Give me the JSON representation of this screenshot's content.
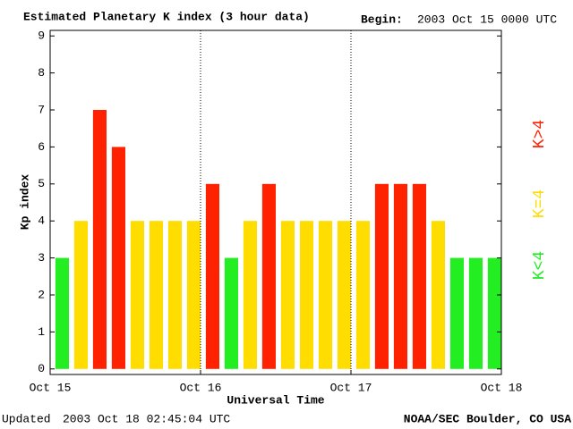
{
  "chart_data": {
    "type": "bar",
    "title": "Estimated Planetary K index (3 hour data)",
    "begin_label": "Begin:",
    "begin": "2003 Oct 15 0000 UTC",
    "y_label": "Kp index",
    "x_label": "Universal Time",
    "updated_label": "Updated",
    "updated": "2003 Oct 18 02:45:04 UTC",
    "source": "NOAA/SEC Boulder, CO USA",
    "x": [
      0,
      3,
      6,
      9,
      12,
      15,
      18,
      21,
      24,
      27,
      30,
      33,
      36,
      39,
      42,
      45,
      48,
      51,
      54,
      57,
      60,
      63,
      66,
      69
    ],
    "bar_width": 3,
    "values": [
      3,
      4,
      7,
      6,
      4,
      4,
      4,
      4,
      5,
      3,
      4,
      5,
      4,
      4,
      4,
      4,
      4,
      5,
      5,
      5,
      4,
      3,
      3,
      3
    ],
    "colors": [
      "#22ee22",
      "#ffdd00",
      "#ff2200",
      "#ff2200",
      "#ffdd00",
      "#ffdd00",
      "#ffdd00",
      "#ffdd00",
      "#ff2200",
      "#22ee22",
      "#ffdd00",
      "#ff2200",
      "#ffdd00",
      "#ffdd00",
      "#ffdd00",
      "#ffdd00",
      "#ffdd00",
      "#ff2200",
      "#ff2200",
      "#ff2200",
      "#ffdd00",
      "#22ee22",
      "#22ee22",
      "#22ee22"
    ],
    "legend": [
      {
        "label": "K<4",
        "color": "#22ee22"
      },
      {
        "label": "K=4",
        "color": "#ffdd00"
      },
      {
        "label": "K>4",
        "color": "#ff2200"
      }
    ],
    "xlim": [
      0,
      72
    ],
    "xticks": [
      {
        "value": 0,
        "label": "Oct 15"
      },
      {
        "value": 24,
        "label": "Oct 16"
      },
      {
        "value": 48,
        "label": "Oct 17"
      },
      {
        "value": 72,
        "label": "Oct 18"
      }
    ],
    "day_lines": [
      24,
      48
    ],
    "ylim": [
      -0.15,
      9.15
    ],
    "yticks": [
      0,
      1,
      2,
      3,
      4,
      5,
      6,
      7,
      8,
      9
    ]
  }
}
